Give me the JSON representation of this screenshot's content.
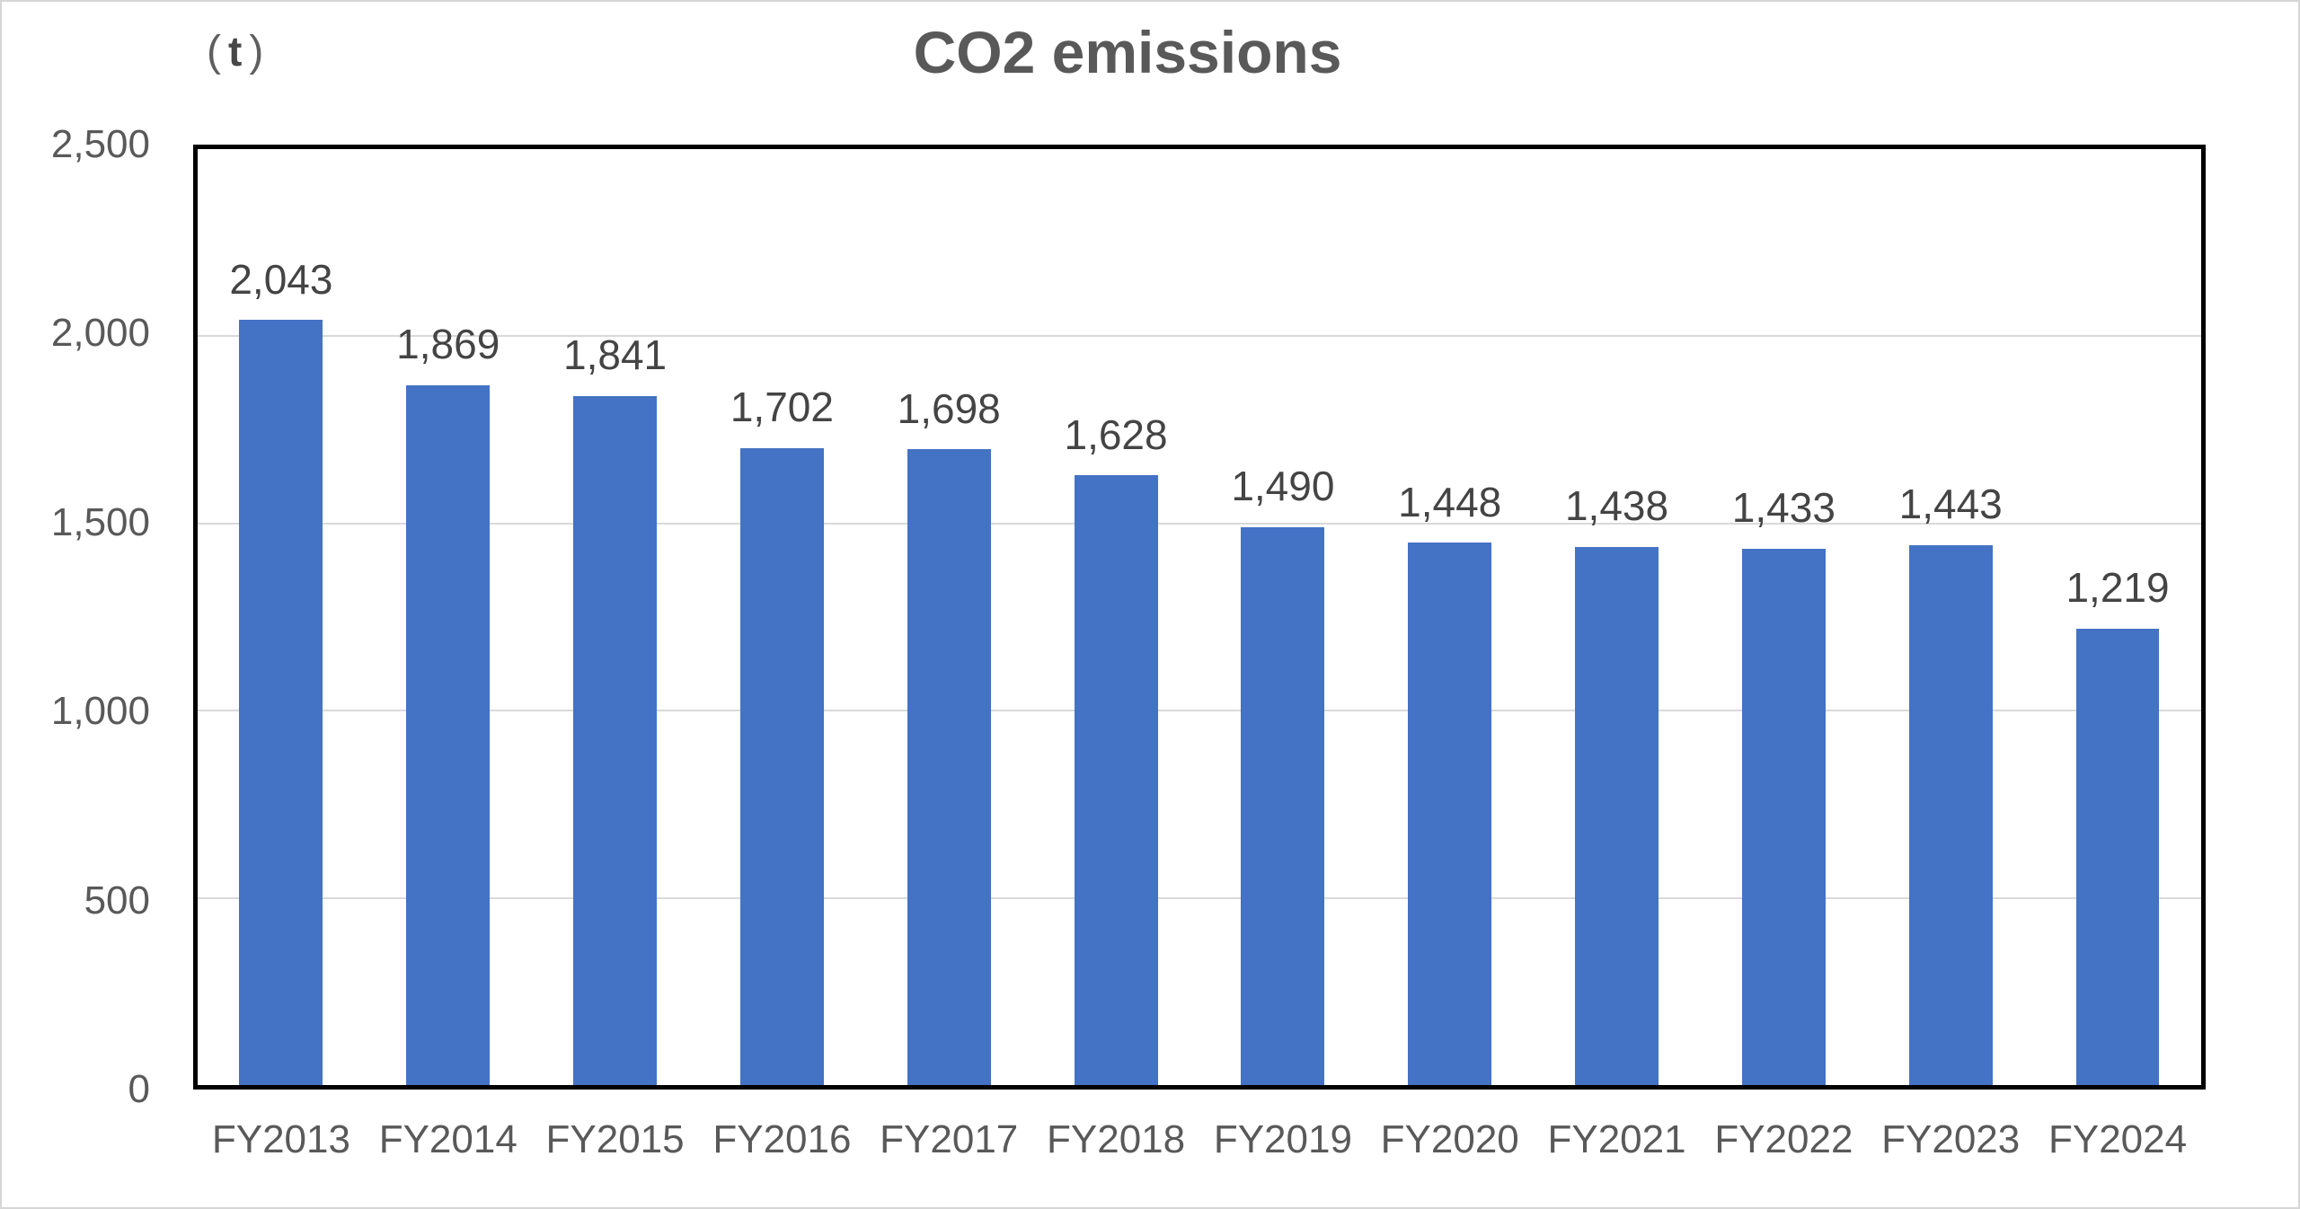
{
  "title": "CO2 emissions",
  "unit": {
    "open": "(",
    "letter": "t",
    "close": ")"
  },
  "colors": {
    "bar": "#4472C4",
    "title_text": "#595959",
    "axis_label_text": "#595959",
    "data_label_text": "#444444",
    "gridline": "#D9D9D9",
    "plot_border": "#000000",
    "canvas_border": "#D6D6D6"
  },
  "chart_data": {
    "type": "bar",
    "title": "CO2 emissions",
    "unit_label": "(t)",
    "categories": [
      "FY2013",
      "FY2014",
      "FY2015",
      "FY2016",
      "FY2017",
      "FY2018",
      "FY2019",
      "FY2020",
      "FY2021",
      "FY2022",
      "FY2023",
      "FY2024"
    ],
    "values": [
      2043,
      1869,
      1841,
      1702,
      1698,
      1628,
      1490,
      1448,
      1438,
      1433,
      1443,
      1219
    ],
    "data_labels": [
      "2,043",
      "1,869",
      "1,841",
      "1,702",
      "1,698",
      "1,628",
      "1,490",
      "1,448",
      "1,438",
      "1,433",
      "1,443",
      "1,219"
    ],
    "xlabel": "",
    "ylabel": "",
    "ylim": [
      0,
      2500
    ],
    "yticks": [
      {
        "value": 0,
        "label": "0"
      },
      {
        "value": 500,
        "label": "500"
      },
      {
        "value": 1000,
        "label": "1,000"
      },
      {
        "value": 1500,
        "label": "1,500"
      },
      {
        "value": 2000,
        "label": "2,000"
      },
      {
        "value": 2500,
        "label": "2,500"
      }
    ],
    "grid": "horizontal",
    "legend": "none",
    "bar_width_fraction_of_slot": 0.5
  }
}
